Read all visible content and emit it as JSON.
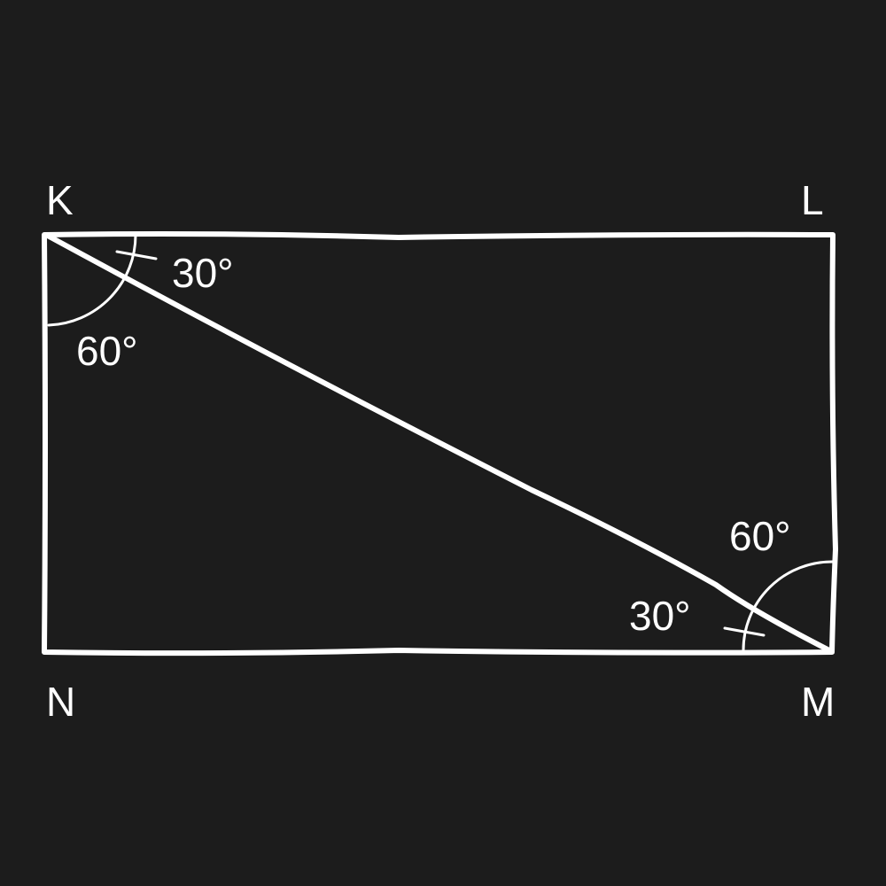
{
  "vertices": {
    "top_left": "K",
    "top_right": "L",
    "bottom_right": "M",
    "bottom_left": "N"
  },
  "angles": {
    "k_upper": "30°",
    "k_lower": "60°",
    "m_upper": "60°",
    "m_lower": "30°"
  },
  "colors": {
    "background": "#1c1c1c",
    "ink": "#ffffff"
  }
}
